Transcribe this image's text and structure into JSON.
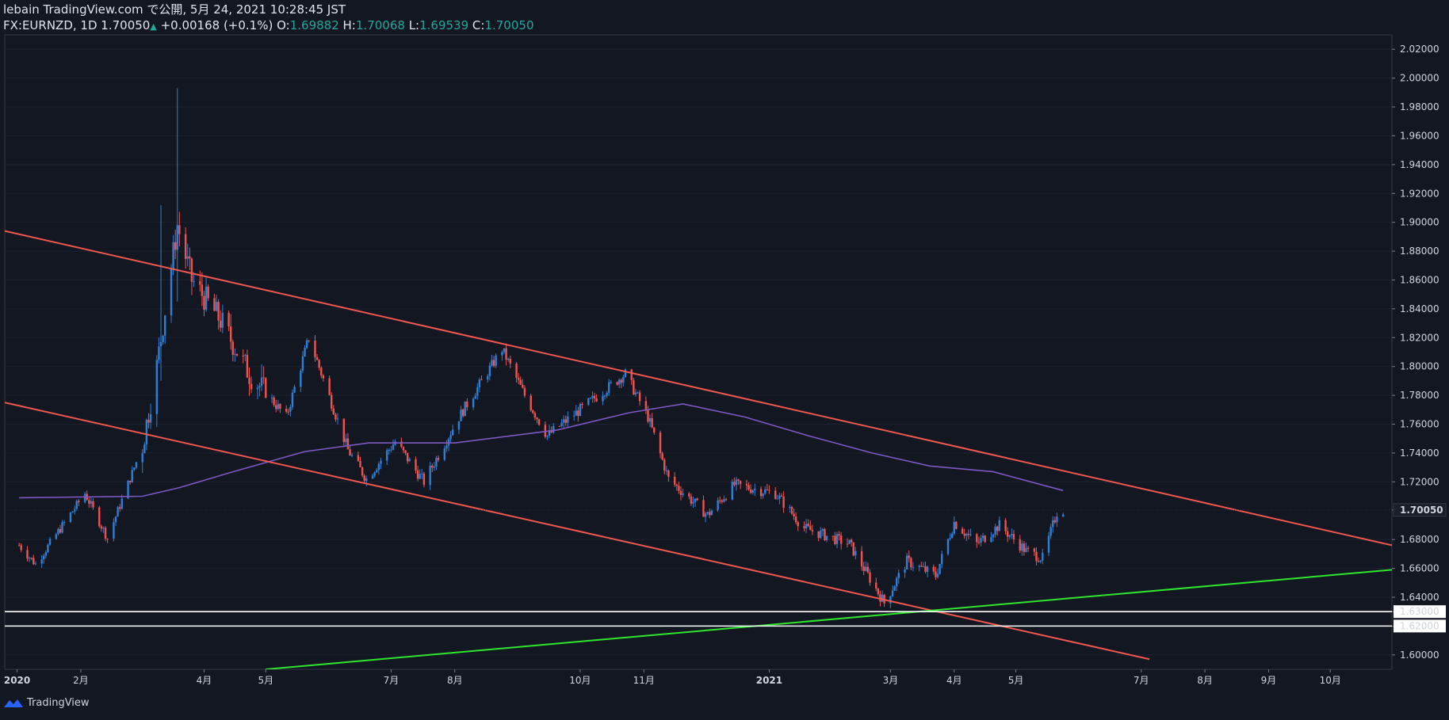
{
  "header": {
    "line1": "lebain TradingView.com で公開, 5月 24, 2021 10:28:45 JST",
    "symbol": "FX:EURNZD, 1D",
    "last": "1.70050",
    "change": "+0.00168 (+0.1%)",
    "o_label": "O:",
    "o": "1.69882",
    "h_label": "H:",
    "h": "1.70068",
    "l_label": "L:",
    "l": "1.69539",
    "c_label": "C:",
    "c": "1.70050"
  },
  "footer": {
    "brand": "TradingView"
  },
  "colors": {
    "background": "#131722",
    "up": "#2f7fd6",
    "down": "#ef5350",
    "channel": "#f0574f",
    "ma": "#7e57c2",
    "support": "#2ee62e",
    "hline": "#ffffff",
    "grid": "#1e2230"
  },
  "chart_data": {
    "type": "candlestick",
    "symbol": "FX:EURNZD",
    "interval": "1D",
    "ylim": [
      1.59,
      2.03
    ],
    "y_ticks": [
      "2.02000",
      "2.00000",
      "1.98000",
      "1.96000",
      "1.94000",
      "1.92000",
      "1.90000",
      "1.88000",
      "1.86000",
      "1.84000",
      "1.82000",
      "1.80000",
      "1.78000",
      "1.76000",
      "1.74000",
      "1.72000",
      "1.70050",
      "1.68000",
      "1.66000",
      "1.64000",
      "1.63000",
      "1.62000",
      "1.60000"
    ],
    "last_price": "1.70050",
    "x_ticks": [
      "2020",
      "2月",
      "4月",
      "5月",
      "7月",
      "8月",
      "10月",
      "11月",
      "2021",
      "3月",
      "4月",
      "5月",
      "7月",
      "8月",
      "9月",
      "10月"
    ],
    "key_points": [
      {
        "date": "2020-01-02",
        "close": 1.676
      },
      {
        "date": "2020-01-10",
        "close": 1.663
      },
      {
        "date": "2020-02-03",
        "close": 1.712
      },
      {
        "date": "2020-02-14",
        "close": 1.681
      },
      {
        "date": "2020-03-02",
        "close": 1.745
      },
      {
        "date": "2020-03-09",
        "close": 1.8
      },
      {
        "date": "2020-03-19",
        "close": 1.898
      },
      {
        "date": "2020-03-26",
        "close": 1.86
      },
      {
        "date": "2020-04-09",
        "close": 1.832
      },
      {
        "date": "2020-04-23",
        "close": 1.795
      },
      {
        "date": "2020-05-11",
        "close": 1.765
      },
      {
        "date": "2020-05-22",
        "close": 1.82
      },
      {
        "date": "2020-06-10",
        "close": 1.742
      },
      {
        "date": "2020-06-19",
        "close": 1.722
      },
      {
        "date": "2020-07-03",
        "close": 1.748
      },
      {
        "date": "2020-07-17",
        "close": 1.72
      },
      {
        "date": "2020-08-03",
        "close": 1.765
      },
      {
        "date": "2020-08-24",
        "close": 1.812
      },
      {
        "date": "2020-09-04",
        "close": 1.78
      },
      {
        "date": "2020-09-15",
        "close": 1.752
      },
      {
        "date": "2020-10-08",
        "close": 1.778
      },
      {
        "date": "2020-10-23",
        "close": 1.795
      },
      {
        "date": "2020-11-03",
        "close": 1.765
      },
      {
        "date": "2020-11-13",
        "close": 1.722
      },
      {
        "date": "2020-12-02",
        "close": 1.697
      },
      {
        "date": "2020-12-15",
        "close": 1.718
      },
      {
        "date": "2021-01-04",
        "close": 1.712
      },
      {
        "date": "2021-01-18",
        "close": 1.688
      },
      {
        "date": "2021-02-09",
        "close": 1.677
      },
      {
        "date": "2021-02-26",
        "close": 1.636
      },
      {
        "date": "2021-03-09",
        "close": 1.665
      },
      {
        "date": "2021-03-23",
        "close": 1.655
      },
      {
        "date": "2021-04-01",
        "close": 1.692
      },
      {
        "date": "2021-04-12",
        "close": 1.677
      },
      {
        "date": "2021-04-23",
        "close": 1.69
      },
      {
        "date": "2021-05-06",
        "close": 1.672
      },
      {
        "date": "2021-05-14",
        "close": 1.667
      },
      {
        "date": "2021-05-21",
        "close": 1.699
      },
      {
        "date": "2021-05-24",
        "close": 1.7005
      }
    ],
    "spikes": [
      {
        "date": "2020-03-19",
        "high": 1.993,
        "low": 1.845
      },
      {
        "date": "2020-03-11",
        "high": 1.912,
        "low": 1.79
      }
    ],
    "moving_average": [
      {
        "date": "2020-01-02",
        "value": 1.709
      },
      {
        "date": "2020-03-02",
        "value": 1.71
      },
      {
        "date": "2020-03-20",
        "value": 1.716
      },
      {
        "date": "2020-04-15",
        "value": 1.727
      },
      {
        "date": "2020-05-20",
        "value": 1.741
      },
      {
        "date": "2020-06-20",
        "value": 1.747
      },
      {
        "date": "2020-08-01",
        "value": 1.747
      },
      {
        "date": "2020-09-20",
        "value": 1.756
      },
      {
        "date": "2020-10-25",
        "value": 1.768
      },
      {
        "date": "2020-11-20",
        "value": 1.774
      },
      {
        "date": "2020-12-20",
        "value": 1.765
      },
      {
        "date": "2021-01-20",
        "value": 1.752
      },
      {
        "date": "2021-02-20",
        "value": 1.74
      },
      {
        "date": "2021-03-20",
        "value": 1.731
      },
      {
        "date": "2021-04-20",
        "value": 1.727
      },
      {
        "date": "2021-05-24",
        "value": 1.714
      }
    ],
    "trendlines": [
      {
        "name": "",
        "color": "channel",
        "from": {
          "date": "2019-12-26",
          "value": 1.894
        },
        "to": {
          "date": "2021-10-31",
          "value": 1.676
        }
      },
      {
        "name": "",
        "color": "channel",
        "from": {
          "date": "2019-12-26",
          "value": 1.775
        },
        "to": {
          "date": "2021-07-05",
          "value": 1.597
        }
      },
      {
        "name": "",
        "color": "support",
        "from": {
          "date": "2020-05-01",
          "value": 1.59
        },
        "to": {
          "date": "2021-10-31",
          "value": 1.659
        }
      }
    ],
    "horizontal_lines": [
      1.63,
      1.62
    ]
  }
}
